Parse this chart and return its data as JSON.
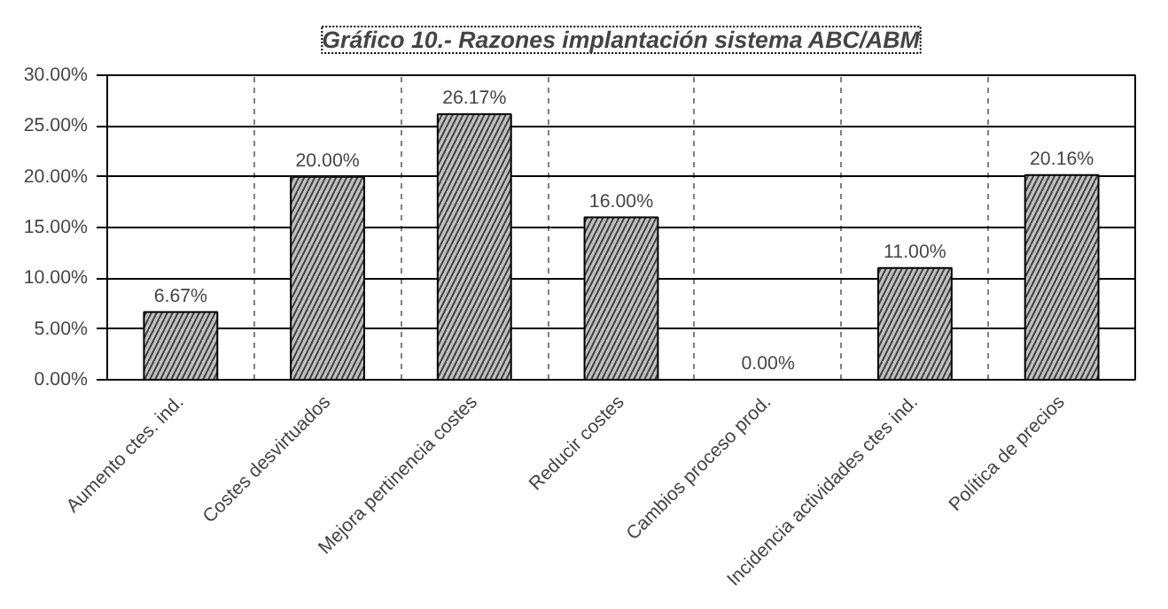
{
  "chart_data": {
    "type": "bar",
    "title": "Gráfico 10.- Razones implantación sistema ABC/ABM",
    "categories": [
      "Aumento ctes. ind.",
      "Costes desvirtuados",
      "Mejora pertinencia costes",
      "Reducir costes",
      "Cambios proceso prod.",
      "Incidencia actividades ctes ind.",
      "Política de precios"
    ],
    "values": [
      6.67,
      20.0,
      26.17,
      16.0,
      0.0,
      11.0,
      20.16
    ],
    "value_labels": [
      "6.67%",
      "20.00%",
      "26.17%",
      "16.00%",
      "0.00%",
      "11.00%",
      "20.16%"
    ],
    "color": "#c0c0c0",
    "ylim": [
      0,
      30
    ],
    "yticks": [
      {
        "value": 0,
        "label": "0.00%"
      },
      {
        "value": 5,
        "label": "5.00%"
      },
      {
        "value": 10,
        "label": "10.00%"
      },
      {
        "value": 15,
        "label": "15.00%"
      },
      {
        "value": 20,
        "label": "20.00%"
      },
      {
        "value": 25,
        "label": "25.00%"
      },
      {
        "value": 30,
        "label": "30.00%"
      }
    ],
    "grid": true
  }
}
